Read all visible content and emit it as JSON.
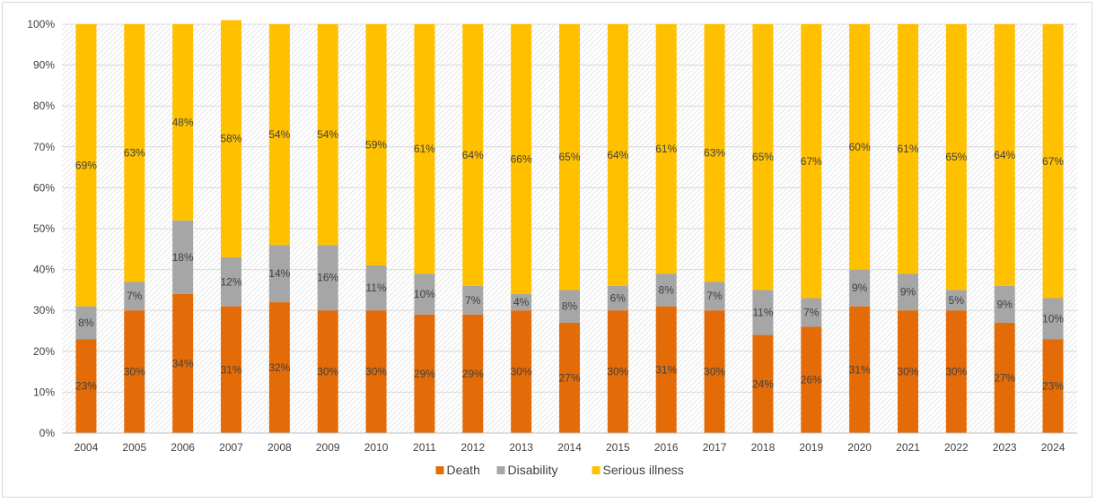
{
  "chart_data": {
    "type": "bar",
    "stacked": true,
    "percent_stacked": true,
    "categories": [
      "2004",
      "2005",
      "2006",
      "2007",
      "2008",
      "2009",
      "2010",
      "2011",
      "2012",
      "2013",
      "2014",
      "2015",
      "2016",
      "2017",
      "2018",
      "2019",
      "2020",
      "2021",
      "2022",
      "2023",
      "2024"
    ],
    "series": [
      {
        "name": "Death",
        "color": "#e36c09",
        "values": [
          23,
          30,
          34,
          31,
          32,
          30,
          30,
          29,
          29,
          30,
          27,
          30,
          31,
          30,
          24,
          26,
          31,
          30,
          30,
          27,
          23
        ]
      },
      {
        "name": "Disability",
        "color": "#a6a6a6",
        "values": [
          8,
          7,
          18,
          12,
          14,
          16,
          11,
          10,
          7,
          4,
          8,
          6,
          8,
          7,
          11,
          7,
          9,
          9,
          5,
          9,
          10
        ]
      },
      {
        "name": "Serious illness",
        "color": "#ffc000",
        "values": [
          69,
          63,
          48,
          58,
          54,
          54,
          59,
          61,
          64,
          66,
          65,
          64,
          61,
          63,
          65,
          67,
          60,
          61,
          65,
          64,
          67
        ]
      }
    ],
    "yticks": [
      "0%",
      "10%",
      "20%",
      "30%",
      "40%",
      "50%",
      "60%",
      "70%",
      "80%",
      "90%",
      "100%"
    ],
    "ylim": [
      0,
      100
    ],
    "title": "",
    "xlabel": "",
    "ylabel": "",
    "grid": true,
    "legend_position": "bottom"
  }
}
